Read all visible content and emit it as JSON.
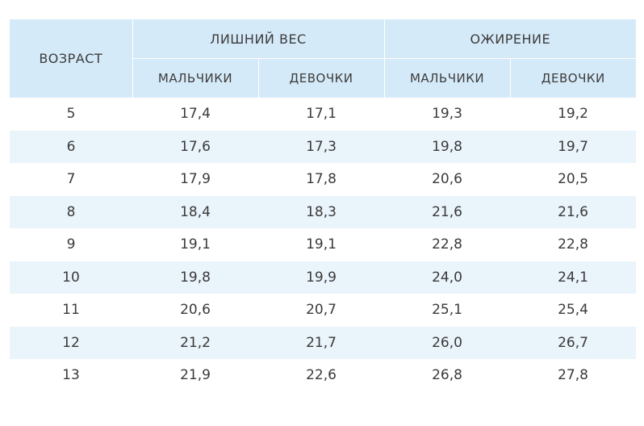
{
  "table": {
    "age_header": "ВОЗРАСТ",
    "groups": [
      {
        "label": "ЛИШНИЙ ВЕС",
        "subheaders": [
          "МАЛЬЧИКИ",
          "ДЕВОЧКИ"
        ]
      },
      {
        "label": "ОЖИРЕНИЕ",
        "subheaders": [
          "МАЛЬЧИКИ",
          "ДЕВОЧКИ"
        ]
      }
    ],
    "rows": [
      {
        "age": "5",
        "values": [
          "17,4",
          "17,1",
          "19,3",
          "19,2"
        ]
      },
      {
        "age": "6",
        "values": [
          "17,6",
          "17,3",
          "19,8",
          "19,7"
        ]
      },
      {
        "age": "7",
        "values": [
          "17,9",
          "17,8",
          "20,6",
          "20,5"
        ]
      },
      {
        "age": "8",
        "values": [
          "18,4",
          "18,3",
          "21,6",
          "21,6"
        ]
      },
      {
        "age": "9",
        "values": [
          "19,1",
          "19,1",
          "22,8",
          "22,8"
        ]
      },
      {
        "age": "10",
        "values": [
          "19,8",
          "19,9",
          "24,0",
          "24,1"
        ]
      },
      {
        "age": "11",
        "values": [
          "20,6",
          "20,7",
          "25,1",
          "25,4"
        ]
      },
      {
        "age": "12",
        "values": [
          "21,2",
          "21,7",
          "26,0",
          "26,7"
        ]
      },
      {
        "age": "13",
        "values": [
          "21,9",
          "22,6",
          "26,8",
          "27,8"
        ]
      }
    ]
  },
  "colors": {
    "header_bg": "#d5eaf8",
    "stripe_bg": "#eaf4fb",
    "text": "#3a3a3a"
  }
}
